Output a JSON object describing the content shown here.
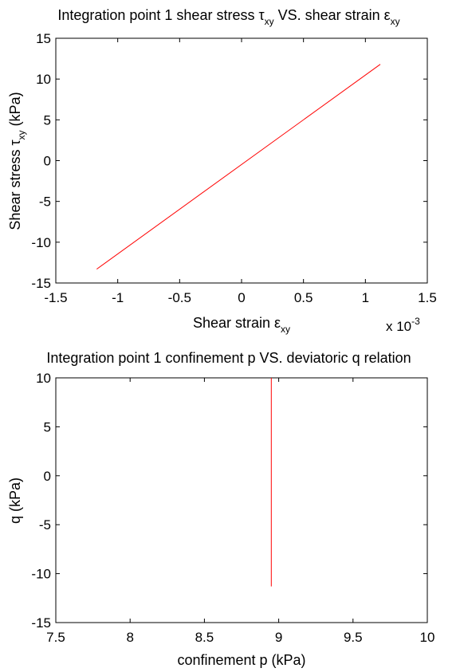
{
  "chart_data": [
    {
      "type": "line",
      "title_main": "Integration point 1 shear stress τ",
      "title_sub1": "xy",
      "title_mid": " VS. shear strain ε",
      "title_sub2": "xy",
      "xlabel_main": "Shear strain ε",
      "xlabel_sub": "xy",
      "ylabel_main": "Shear stress τ",
      "ylabel_sub": "xy",
      "ylabel_unit": " (kPa)",
      "x_multiplier_base": "x 10",
      "x_multiplier_exp": "-3",
      "xlim": [
        -1.5,
        1.5
      ],
      "ylim": [
        -15,
        15
      ],
      "x_ticks": [
        -1.5,
        -1,
        -0.5,
        0,
        0.5,
        1,
        1.5
      ],
      "x_tick_labels": [
        "-1.5",
        "-1",
        "-0.5",
        "0",
        "0.5",
        "1",
        "1.5"
      ],
      "y_ticks": [
        -15,
        -10,
        -5,
        0,
        5,
        10,
        15
      ],
      "y_tick_labels": [
        "-15",
        "-10",
        "-5",
        "0",
        "5",
        "10",
        "15"
      ],
      "series": [
        {
          "color": "#ff0000",
          "x": [
            -1.17,
            1.12
          ],
          "y": [
            -13.3,
            11.8
          ]
        }
      ]
    },
    {
      "type": "line",
      "title": "Integration point 1 confinement p VS. deviatoric q relation",
      "xlabel": "confinement p (kPa)",
      "ylabel": "q (kPa)",
      "xlim": [
        7.5,
        10
      ],
      "ylim": [
        -15,
        10
      ],
      "x_ticks": [
        7.5,
        8,
        8.5,
        9,
        9.5,
        10
      ],
      "x_tick_labels": [
        "7.5",
        "8",
        "8.5",
        "9",
        "9.5",
        "10"
      ],
      "y_ticks": [
        -15,
        -10,
        -5,
        0,
        5,
        10
      ],
      "y_tick_labels": [
        "-15",
        "-10",
        "-5",
        "0",
        "5",
        "10"
      ],
      "series": [
        {
          "color": "#ff0000",
          "x": [
            8.95,
            8.95
          ],
          "y": [
            -11.3,
            10
          ]
        }
      ]
    }
  ]
}
